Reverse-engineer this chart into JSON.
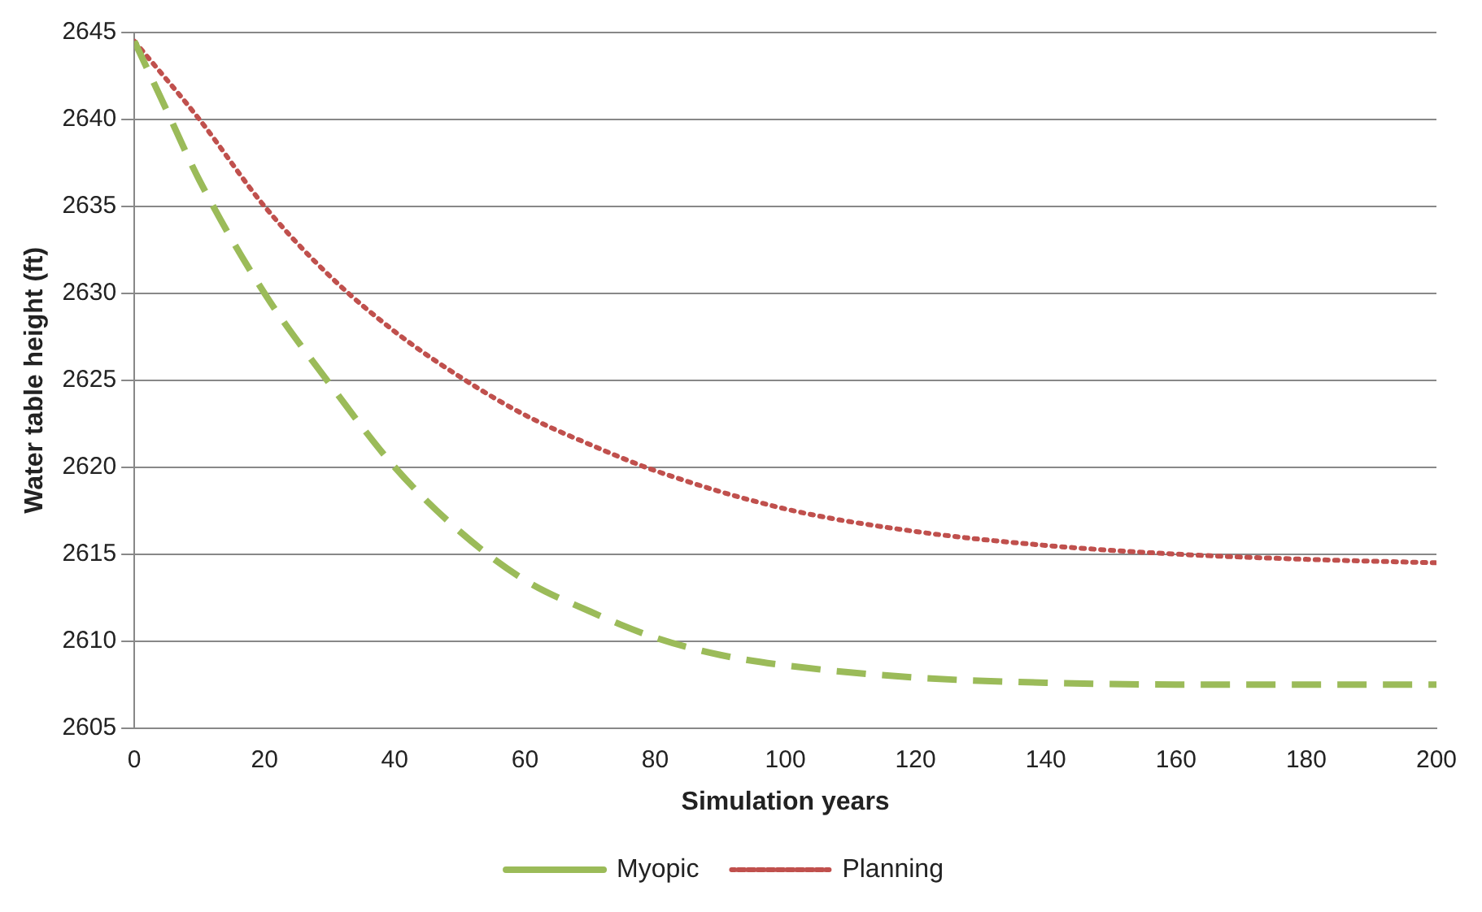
{
  "chart_data": {
    "type": "line",
    "xlabel": "Simulation years",
    "ylabel": "Water table height (ft)",
    "xlim": [
      0,
      200
    ],
    "xticks": [
      0,
      20,
      40,
      60,
      80,
      100,
      120,
      140,
      160,
      180,
      200
    ],
    "ylim": [
      2605,
      2645
    ],
    "yticks": [
      2605,
      2610,
      2615,
      2620,
      2625,
      2630,
      2635,
      2640,
      2645
    ],
    "grid": "y",
    "legend": "bottom",
    "marker": "none",
    "series": [
      {
        "name": "Myopic",
        "color": "#9bbb59",
        "line_style": "dashed",
        "x": [
          0,
          5,
          10,
          20,
          30,
          40,
          50,
          60,
          70,
          80,
          90,
          100,
          120,
          140,
          160,
          180,
          200
        ],
        "values": [
          2644.5,
          2640.5,
          2636.5,
          2630,
          2624.8,
          2620,
          2616.3,
          2613.5,
          2611.7,
          2610.2,
          2609.2,
          2608.6,
          2607.9,
          2607.6,
          2607.5,
          2607.5,
          2607.5
        ]
      },
      {
        "name": "Planning",
        "color": "#c0504d",
        "line_style": "dotted",
        "x": [
          0,
          10,
          20,
          30,
          40,
          50,
          60,
          70,
          80,
          100,
          120,
          140,
          160,
          180,
          200
        ],
        "values": [
          2644.5,
          2640,
          2635,
          2631,
          2627.8,
          2625.2,
          2623,
          2621.3,
          2619.8,
          2617.6,
          2616.3,
          2615.5,
          2615,
          2614.7,
          2614.5
        ]
      }
    ]
  }
}
